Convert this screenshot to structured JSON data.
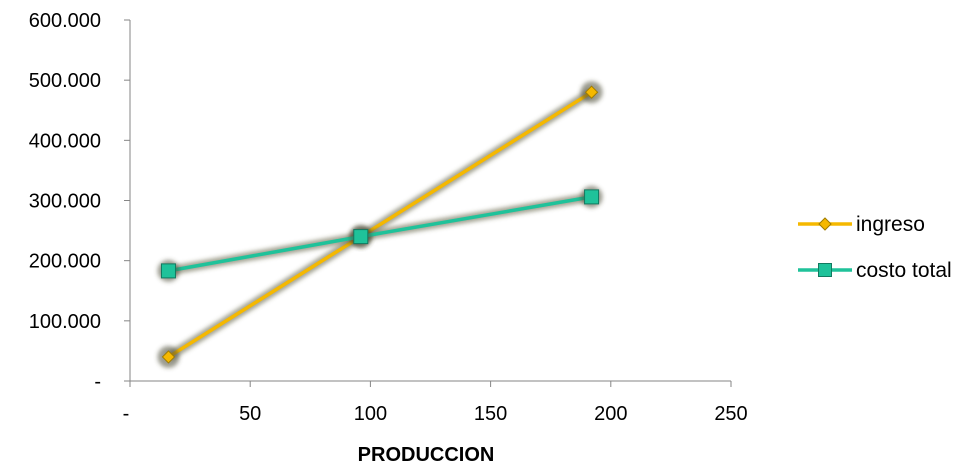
{
  "chart_data": {
    "type": "line",
    "title": "",
    "xlabel": "PRODUCCION",
    "ylabel": "",
    "xlim": [
      0,
      250
    ],
    "ylim": [
      0,
      600000
    ],
    "x_ticks": [
      {
        "value": 0,
        "label": "-"
      },
      {
        "value": 50,
        "label": "50"
      },
      {
        "value": 100,
        "label": "100"
      },
      {
        "value": 150,
        "label": "150"
      },
      {
        "value": 200,
        "label": "200"
      },
      {
        "value": 250,
        "label": "250"
      }
    ],
    "y_ticks": [
      {
        "value": 0,
        "label": "-"
      },
      {
        "value": 100000,
        "label": "100.000"
      },
      {
        "value": 200000,
        "label": "200.000"
      },
      {
        "value": 300000,
        "label": "300.000"
      },
      {
        "value": 400000,
        "label": "400.000"
      },
      {
        "value": 500000,
        "label": "500.000"
      },
      {
        "value": 600000,
        "label": "600.000"
      }
    ],
    "grid": false,
    "legend_position": "right",
    "series": [
      {
        "name": "ingreso",
        "color": "#f5b800",
        "marker": "diamond",
        "points": [
          {
            "x": 16,
            "y": 40000
          },
          {
            "x": 96,
            "y": 240000
          },
          {
            "x": 192,
            "y": 480000
          }
        ]
      },
      {
        "name": "costo total",
        "color": "#1fc29a",
        "marker": "square",
        "points": [
          {
            "x": 16,
            "y": 183000
          },
          {
            "x": 96,
            "y": 240000
          },
          {
            "x": 192,
            "y": 306000
          }
        ]
      }
    ]
  }
}
